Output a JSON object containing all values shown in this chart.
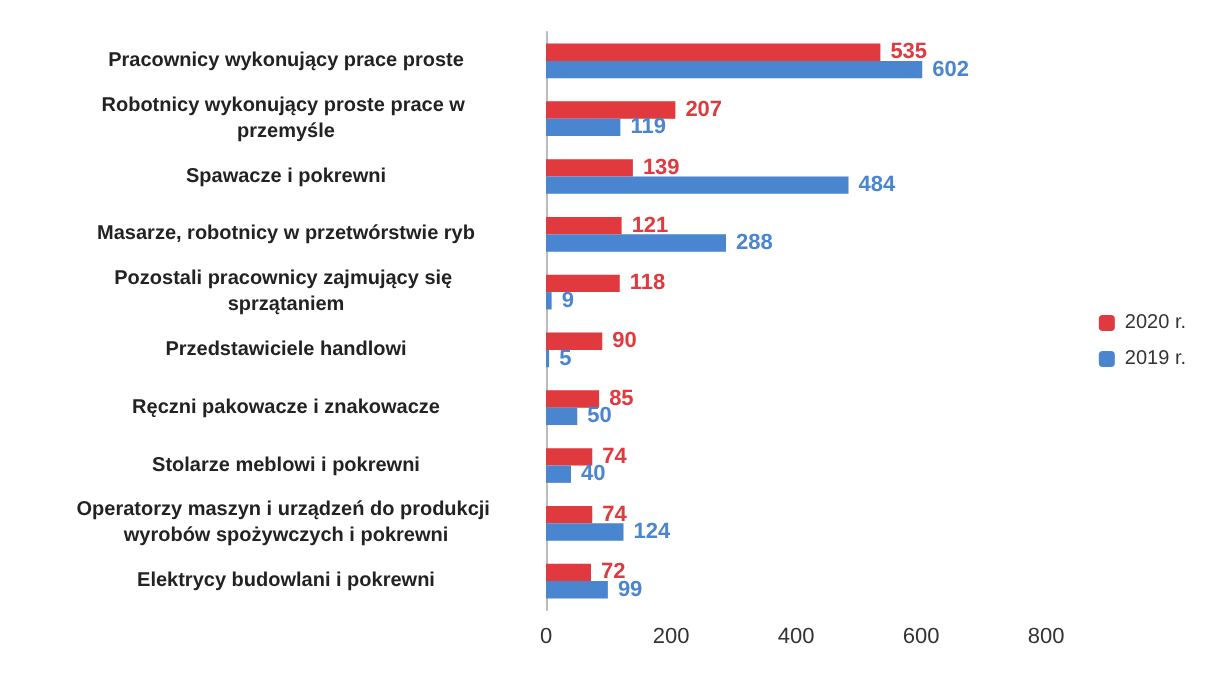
{
  "chart_data": {
    "type": "bar",
    "orientation": "horizontal",
    "categories": [
      "Pracownicy wykonujący prace proste",
      "Robotnicy wykonujący proste prace w przemyśle",
      "Spawacze i pokrewni",
      "Masarze, robotnicy w przetwórstwie ryb",
      "Pozostali pracownicy zajmujący się sprzątaniem",
      "Przedstawiciele handlowi",
      "Ręczni pakowacze i znakowacze",
      "Stolarze meblowi i pokrewni",
      "Operatorzy maszyn i urządzeń do produkcji wyrobów spożywczych i pokrewni",
      "Elektrycy budowlani i pokrewni"
    ],
    "series": [
      {
        "name": "2020 r.",
        "color": "#e0393e",
        "values": [
          535,
          207,
          139,
          121,
          118,
          90,
          85,
          74,
          74,
          72
        ]
      },
      {
        "name": "2019 r.",
        "color": "#4a86d0",
        "values": [
          602,
          119,
          484,
          288,
          9,
          5,
          50,
          40,
          124,
          99
        ]
      }
    ],
    "xlim": [
      0,
      800
    ],
    "xticks": [
      0,
      200,
      400,
      600,
      800
    ],
    "data_labels": true,
    "legend": "right",
    "grid": false
  }
}
